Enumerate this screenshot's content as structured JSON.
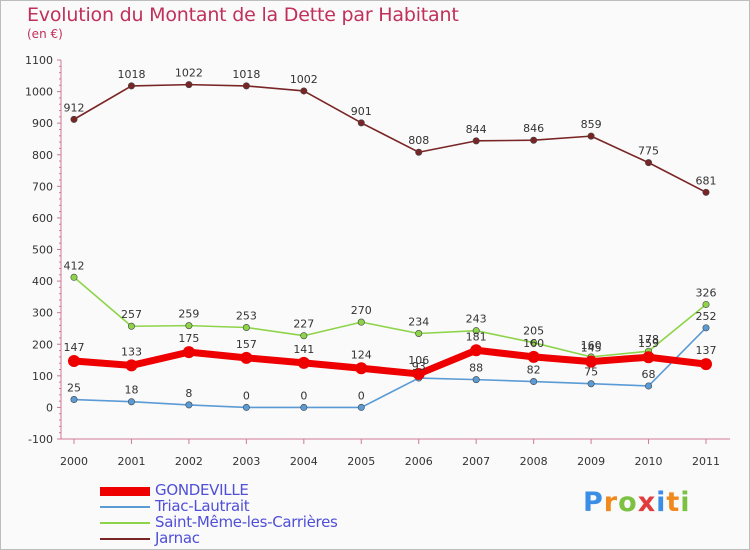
{
  "header": {
    "title": "Evolution du Montant de la Dette par Habitant",
    "unit": "(en €)"
  },
  "logo": {
    "text": "Proxiti",
    "colors": [
      "#3a8ee6",
      "#f08a1c",
      "#7cc142",
      "#e23b3b",
      "#3a8ee6",
      "#f08a1c",
      "#7cc142"
    ]
  },
  "chart_data": {
    "type": "line",
    "categories": [
      "2000",
      "2001",
      "2002",
      "2003",
      "2004",
      "2005",
      "2006",
      "2007",
      "2008",
      "2009",
      "2010",
      "2011"
    ],
    "ylim": [
      -100,
      1100
    ],
    "yticks": [
      -100,
      0,
      100,
      200,
      300,
      400,
      500,
      600,
      700,
      800,
      900,
      1000,
      1100
    ],
    "grid": false,
    "legend_position": "bottom-left",
    "series": [
      {
        "name": "GONDEVILLE",
        "color": "#ee0000",
        "values": [
          147,
          133,
          175,
          157,
          141,
          124,
          106,
          181,
          160,
          145,
          159,
          137
        ]
      },
      {
        "name": "Triac-Lautrait",
        "color": "#5b9bd5",
        "values": [
          25,
          18,
          8,
          0,
          0,
          0,
          93,
          88,
          82,
          75,
          68,
          252
        ]
      },
      {
        "name": "Saint-Même-les-Carrières",
        "color": "#8ed44a",
        "values": [
          412,
          257,
          259,
          253,
          227,
          270,
          234,
          243,
          205,
          160,
          178,
          326
        ]
      },
      {
        "name": "Jarnac",
        "color": "#7a2525",
        "values": [
          912,
          1018,
          1022,
          1018,
          1002,
          901,
          808,
          844,
          846,
          859,
          775,
          681
        ]
      }
    ]
  }
}
